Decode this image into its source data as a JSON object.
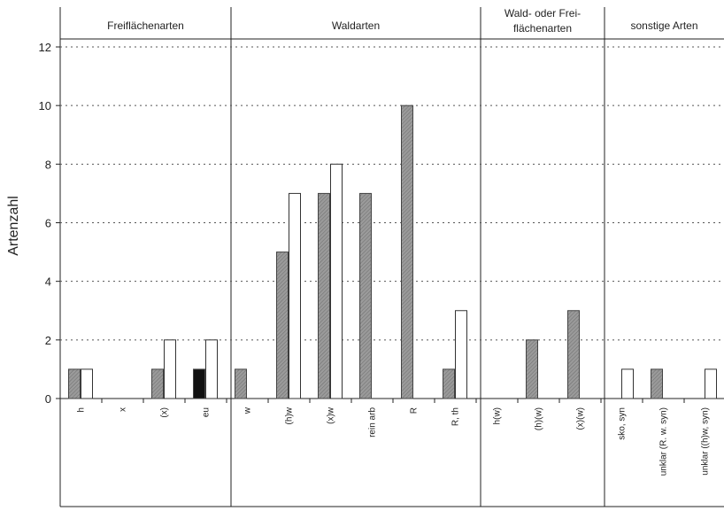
{
  "chart_data": {
    "type": "bar",
    "ylabel": "Artenzahl",
    "ylim": [
      0,
      12
    ],
    "yticks": [
      0,
      2,
      4,
      6,
      8,
      10,
      12
    ],
    "grid": "dashed horizontal",
    "groups": [
      {
        "label_lines": [
          "Freiflächenarten"
        ]
      },
      {
        "label_lines": [
          "Waldarten"
        ]
      },
      {
        "label_lines": [
          "Wald- oder Frei-",
          "flächenarten"
        ]
      },
      {
        "label_lines": [
          "sonstige Arten"
        ]
      }
    ],
    "categories": [
      "h",
      "x",
      "(x)",
      "eu",
      "w",
      "(h)w",
      "(x)w",
      "rein arb",
      "R",
      "R, th",
      "h(w)",
      "(h)(w)",
      "(x)(w)",
      "sko, syn",
      "unklar (R. w. syn)",
      "unklar ((h)w, syn)"
    ],
    "series": [
      {
        "values": [
          1,
          0,
          1,
          1,
          1,
          5,
          7,
          7,
          10,
          1,
          0,
          2,
          3,
          0,
          1,
          0
        ],
        "color": "#8c8c8c"
      },
      {
        "values": [
          1,
          0,
          2,
          2,
          0,
          7,
          8,
          0,
          0,
          3,
          0,
          0,
          0,
          1,
          0,
          1
        ],
        "color": "#ffffff"
      }
    ]
  }
}
